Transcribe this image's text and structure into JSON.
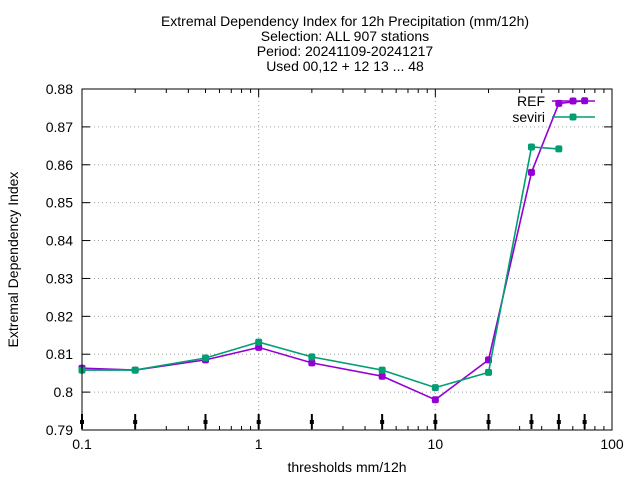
{
  "chart_data": {
    "type": "line",
    "title_lines": [
      "Extremal Dependency Index  for 12h Precipitation (mm/12h)",
      "Selection: ALL    907 stations",
      "Period: 20241109-20241217",
      "Used 00,12 + 12 13 ... 48"
    ],
    "xlabel": "thresholds mm/12h",
    "ylabel": "Extremal Dependency Index",
    "xscale": "log",
    "xlim": [
      0.1,
      100
    ],
    "ylim": [
      0.79,
      0.88
    ],
    "grid": true,
    "legend_position": "top-right",
    "x_ticks": [
      {
        "value": 0.1,
        "label": "0.1"
      },
      {
        "value": 1,
        "label": "1"
      },
      {
        "value": 10,
        "label": "10"
      },
      {
        "value": 100,
        "label": "100"
      }
    ],
    "y_ticks": [
      {
        "value": 0.79,
        "label": "0.79"
      },
      {
        "value": 0.8,
        "label": "0.8"
      },
      {
        "value": 0.81,
        "label": "0.81"
      },
      {
        "value": 0.82,
        "label": "0.82"
      },
      {
        "value": 0.83,
        "label": "0.83"
      },
      {
        "value": 0.84,
        "label": "0.84"
      },
      {
        "value": 0.85,
        "label": "0.85"
      },
      {
        "value": 0.86,
        "label": "0.86"
      },
      {
        "value": 0.87,
        "label": "0.87"
      },
      {
        "value": 0.88,
        "label": "0.88"
      }
    ],
    "threshold_markers": [
      0.1,
      0.2,
      0.5,
      1,
      2,
      5,
      10,
      20,
      35,
      50,
      70
    ],
    "series": [
      {
        "name": "REF",
        "color": "#9400d3",
        "x": [
          0.1,
          0.2,
          0.5,
          1,
          2,
          5,
          10,
          20,
          35,
          50,
          70
        ],
        "values": [
          0.8063,
          0.8058,
          0.8085,
          0.8118,
          0.8077,
          0.8042,
          0.798,
          0.8085,
          0.858,
          0.8762,
          0.8769
        ]
      },
      {
        "name": "seviri",
        "color": "#009e73",
        "x": [
          0.1,
          0.2,
          0.5,
          1,
          2,
          5,
          10,
          20,
          35,
          50
        ],
        "values": [
          0.8058,
          0.8058,
          0.809,
          0.8132,
          0.8093,
          0.8058,
          0.8012,
          0.8052,
          0.8647,
          0.8642
        ]
      }
    ]
  }
}
